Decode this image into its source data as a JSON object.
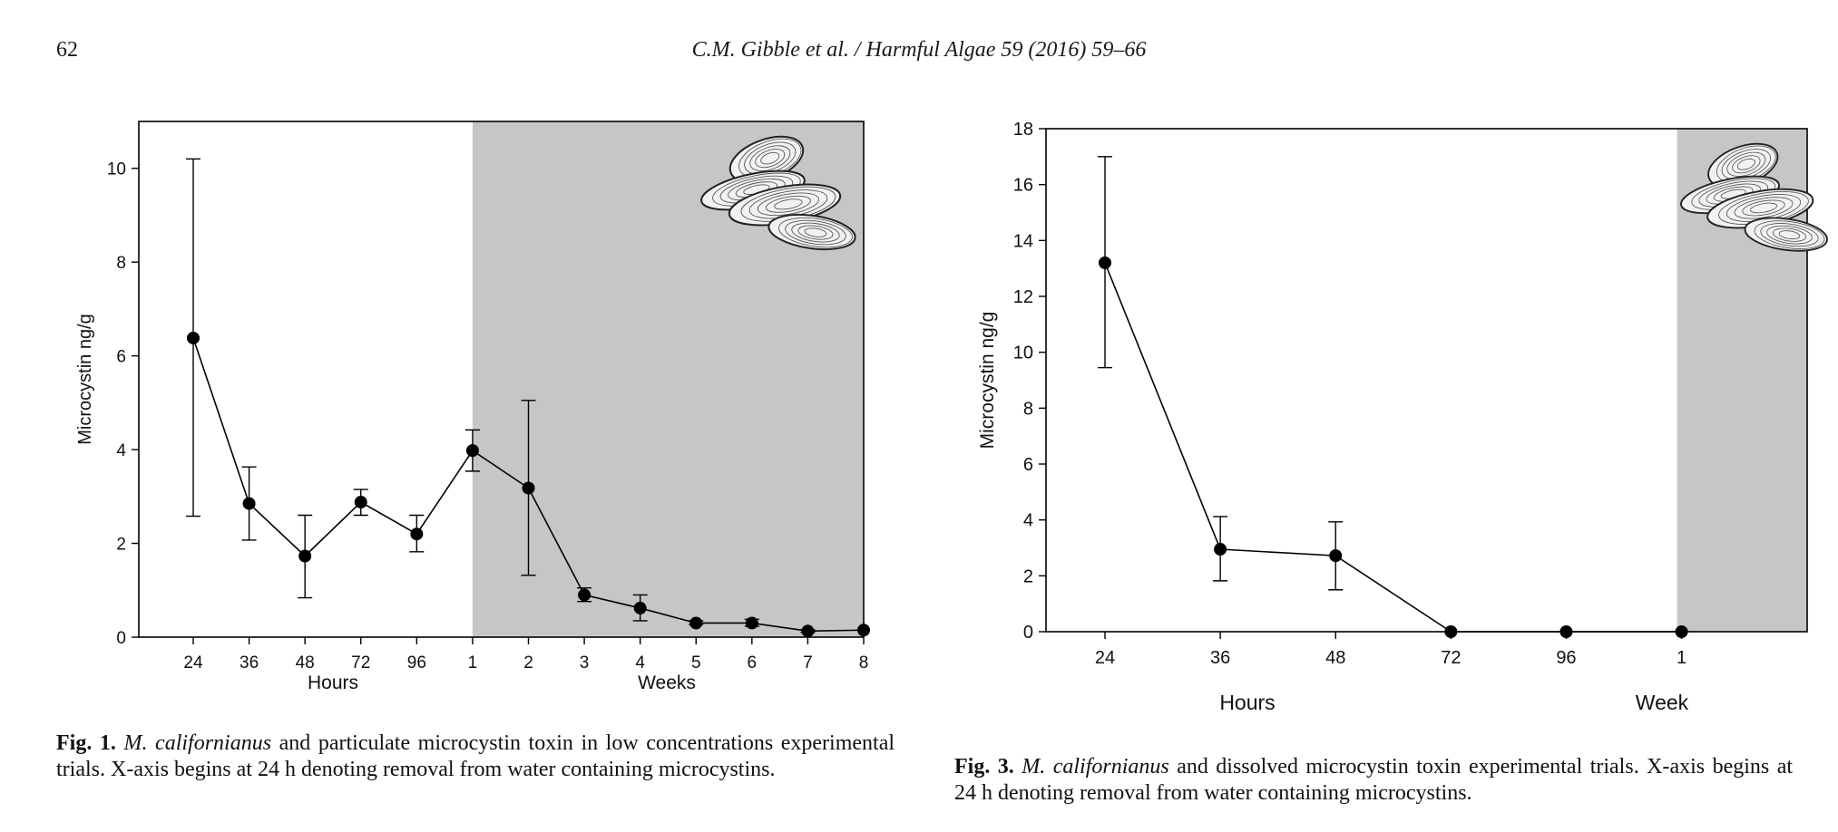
{
  "header": {
    "page_number": "62",
    "citation": "C.M. Gibble et al. / Harmful Algae 59 (2016) 59–66"
  },
  "chart_data": [
    {
      "type": "line",
      "figure": "Fig. 1.",
      "ylabel": "Microcystin ng/g",
      "ylim": [
        0,
        11
      ],
      "yticks": [
        0,
        2,
        4,
        6,
        8,
        10
      ],
      "categories": [
        "24",
        "36",
        "48",
        "72",
        "96",
        "1",
        "2",
        "3",
        "4",
        "5",
        "6",
        "7",
        "8"
      ],
      "group_labels": [
        "Hours",
        "Weeks"
      ],
      "group_spans": [
        [
          0,
          4
        ],
        [
          5,
          12
        ]
      ],
      "shaded_from_index": 5,
      "values": [
        6.38,
        2.85,
        1.73,
        2.88,
        2.2,
        3.98,
        3.18,
        0.9,
        0.62,
        0.3,
        0.3,
        0.13,
        0.15
      ],
      "err_low": [
        2.58,
        2.07,
        0.84,
        2.6,
        1.82,
        3.54,
        1.32,
        0.76,
        0.35,
        0.27,
        0.23,
        0.1,
        0.13
      ],
      "err_high": [
        10.2,
        3.63,
        2.6,
        3.15,
        2.6,
        4.42,
        5.05,
        1.05,
        0.9,
        0.35,
        0.38,
        0.16,
        0.17
      ],
      "shade_color": "#c6c6c6",
      "marker_color": "#000000",
      "grid": false
    },
    {
      "type": "line",
      "figure": "Fig. 3.",
      "ylabel": "Microcystin ng/g",
      "ylim": [
        0,
        18
      ],
      "yticks": [
        0,
        2,
        4,
        6,
        8,
        10,
        12,
        14,
        16,
        18
      ],
      "categories": [
        "24",
        "36",
        "48",
        "72",
        "96",
        "1"
      ],
      "group_labels": [
        "Hours",
        "Week"
      ],
      "group_spans": [
        [
          0,
          4
        ],
        [
          5,
          5
        ]
      ],
      "shaded_from_index": 5,
      "values": [
        13.2,
        2.95,
        2.72,
        0.0,
        0.0,
        0.0
      ],
      "err_low": [
        9.45,
        1.82,
        1.5,
        0.0,
        0.0,
        0.0
      ],
      "err_high": [
        17.0,
        4.12,
        3.93,
        0.0,
        0.0,
        0.0
      ],
      "shade_color": "#c6c6c6",
      "marker_color": "#000000",
      "grid": false
    }
  ],
  "captions": {
    "fig1": {
      "label": "Fig. 1.",
      "species": "M. californianus",
      "text": "and particulate microcystin toxin in low concentrations experimental trials. X-axis begins at 24 h denoting removal from water containing microcystins."
    },
    "fig3": {
      "label": "Fig. 3.",
      "species": "M. californianus",
      "text": "and dissolved microcystin toxin experimental trials. X-axis begins at 24 h denoting removal from water containing microcystins."
    }
  }
}
